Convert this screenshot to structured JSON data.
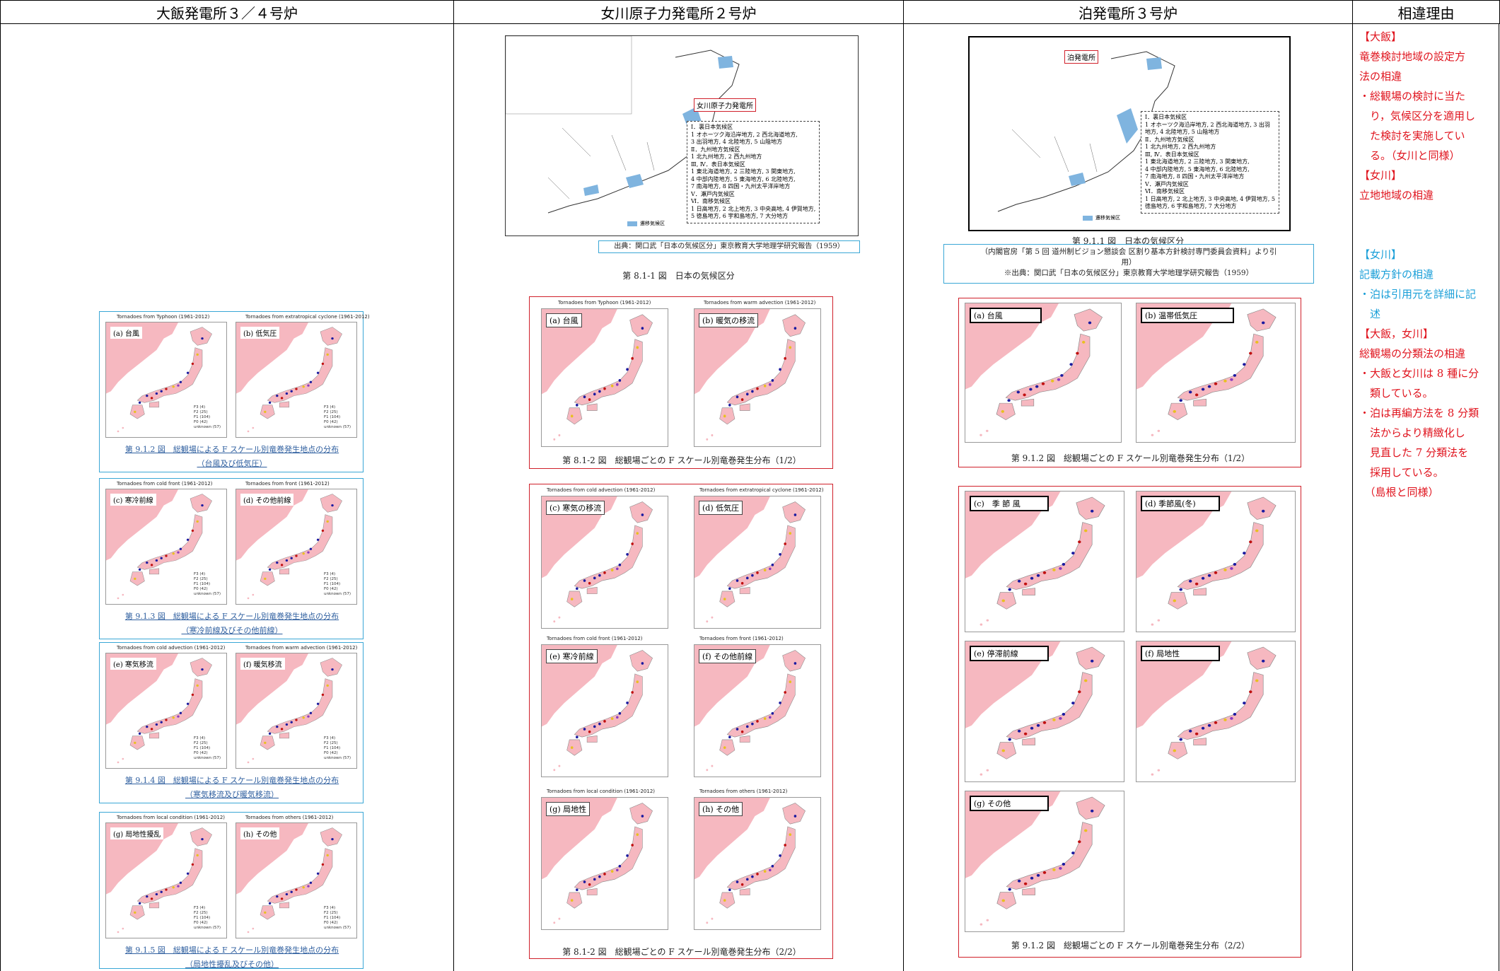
{
  "headers": {
    "col1": "大飯発電所３／４号炉",
    "col2": "女川原子力発電所２号炉",
    "col3": "泊発電所３号炉",
    "col4": "相違理由"
  },
  "col1": {
    "figures": [
      {
        "title_left": "Tornadoes from Typhoon (1961-2012)",
        "title_right": "Tornadoes from extratropical cyclone (1961-2012)",
        "label_left": "(a) 台風",
        "label_right": "(b) 低気圧",
        "caption": "第 9.1.2 図　総観場による F スケール別竜巻発生地点の分布",
        "sub": "（台風及び低気圧）"
      },
      {
        "title_left": "Tornadoes from cold front (1961-2012)",
        "title_right": "Tornadoes from front (1961-2012)",
        "label_left": "(c) 寒冷前線",
        "label_right": "(d) その他前線",
        "caption": "第 9.1.3 図　総観場による F スケール別竜巻発生地点の分布",
        "sub": "（寒冷前線及びその他前線）"
      },
      {
        "title_left": "Tornadoes from cold advection (1961-2012)",
        "title_right": "Tornadoes from warm advection (1961-2012)",
        "label_left": "(e) 寒気移流",
        "label_right": "(f) 暖気移流",
        "caption": "第 9.1.4 図　総観場による F スケール別竜巻発生地点の分布",
        "sub": "（寒気移流及び暖気移流）"
      },
      {
        "title_left": "Tornadoes from local condition (1961-2012)",
        "title_right": "Tornadoes from others (1961-2012)",
        "label_left": "(g) 局地性擾乱",
        "label_right": "(h) その他",
        "caption": "第 9.1.5 図　総観場による F スケール別竜巻発生地点の分布",
        "sub": "（局地性擾乱及びその他）"
      }
    ],
    "legend": [
      "F3 (4)",
      "F2 (25)",
      "F1 (104)",
      "F0 (42)",
      "unknown (57)"
    ]
  },
  "col2": {
    "plant_label": "女川原子力発電所",
    "zones": [
      "Ⅰ．裏日本気候区",
      "1 オホーツク海沿岸地方, 2 西北海道地方,",
      "3 出羽地方, 4 北陸地方, 5 山陰地方",
      "Ⅱ．九州地方気候区",
      "1 北九州地方, 2 西九州地方",
      "Ⅲ, Ⅳ．表日本気候区",
      "1 東北海道地方, 2 三陸地方, 3 関東地方,",
      "4 中部内陸地方, 5 東海地方, 6 北陸地方,",
      "7 南海地方, 8 四国・九州太平洋岸地方",
      "Ⅴ．瀬戸内気候区",
      "Ⅵ．南移気候区",
      "1 日高地方, 2 北上地方, 3 中央高地, 4 伊賀地方,",
      "5 徳島地方, 6 宇和島地方, 7 大分地方"
    ],
    "zone_legend": "遷移気候区",
    "source": "出典：関口武「日本の気候区分」東京教育大学地理学研究報告（1959）",
    "map_caption": "第 8.1-1 図　日本の気候区分",
    "fig1": {
      "title_left": "Tornadoes from Typhoon (1961-2012)",
      "title_right": "Tornadoes from warm advection (1961-2012)",
      "label_left": "(a) 台風",
      "label_right": "(b) 暖気の移流",
      "caption": "第 8.1-2 図　総観場ごとの F スケール別竜巻発生分布（1/2）"
    },
    "fig2": {
      "panels": [
        {
          "title": "Tornadoes from cold advection (1961-2012)",
          "label": "(c) 寒気の移流"
        },
        {
          "title": "Tornadoes from extratropical cyclone (1961-2012)",
          "label": "(d) 低気圧"
        },
        {
          "title": "Tornadoes from cold front (1961-2012)",
          "label": "(e) 寒冷前線"
        },
        {
          "title": "Tornadoes from front (1961-2012)",
          "label": "(f) その他前線"
        },
        {
          "title": "Tornadoes from local condition (1961-2012)",
          "label": "(g) 局地性"
        },
        {
          "title": "Tornadoes from others (1961-2012)",
          "label": "(h) その他"
        }
      ],
      "caption": "第 8.1-2 図　総観場ごとの F スケール別竜巻発生分布（2/2）"
    }
  },
  "col3": {
    "plant_label": "泊発電所",
    "zones": [
      "Ⅰ．裏日本気候区",
      "1 オホーツク海沿岸地方, 2 西北海道地方, 3 出羽",
      "地方, 4 北陸地方, 5 山陰地方",
      "Ⅱ．九州地方気候区",
      "1 北九州地方, 2 西九州地方",
      "Ⅲ, Ⅳ．表日本気候区",
      "1 東北海道地方, 2 三陸地方, 3 関東地方,",
      "4 中部内陸地方, 5 東海地方, 6 北陸地方,",
      "7 南海地方, 8 四国・九州太平洋岸地方",
      "Ⅴ．瀬戸内気候区",
      "Ⅵ．南移気候区",
      "1 日高地方, 2 北上地方, 3 中央高地, 4 伊賀地方, 5",
      "徳島地方, 6 宇和島地方, 7 大分地方"
    ],
    "zone_legend": "遷移気候区",
    "map_caption": "第 9.1.1 図　日本の気候区分",
    "source_line1": "（内閣官房「第 5 回 道州制ビジョン懇談会 区割り基本方針検討専門委員会資料」より引",
    "source_line2": "用）",
    "source_line3": "※出典：関口武「日本の気候区分」東京教育大学地理学研究報告（1959）",
    "fig1": {
      "label_left": "(a) 台風",
      "label_right": "(b) 温帯低気圧",
      "caption": "第 9.1.2 図　総観場ごとの F スケール別竜巻発生分布（1/2）"
    },
    "fig2": {
      "panels": [
        {
          "label": "(c)　季 節 風"
        },
        {
          "label": "(d) 季節風(冬)"
        },
        {
          "label": "(e) 停滞前線"
        },
        {
          "label": "(f) 局地性"
        },
        {
          "label": "(g) その他"
        }
      ],
      "caption": "第 9.1.2 図　総観場ごとの F スケール別竜巻発生分布（2/2）"
    }
  },
  "col4": {
    "notes": [
      {
        "text": "【大飯】",
        "color": "red"
      },
      {
        "text": "竜巻検討地域の設定方",
        "color": "red"
      },
      {
        "text": "法の相違",
        "color": "red"
      },
      {
        "text": "・総観場の検討に当た",
        "color": "red"
      },
      {
        "text": "　り，気候区分を適用し",
        "color": "red"
      },
      {
        "text": "　た検討を実施してい",
        "color": "red"
      },
      {
        "text": "　る。（女川と同様）",
        "color": "red"
      },
      {
        "text": "【女川】",
        "color": "red"
      },
      {
        "text": "立地地域の相違",
        "color": "red"
      },
      {
        "text": "",
        "color": "red"
      },
      {
        "text": "",
        "color": "red"
      },
      {
        "text": "【女川】",
        "color": "cyan"
      },
      {
        "text": "記載方針の相違",
        "color": "cyan"
      },
      {
        "text": "・泊は引用元を詳細に記",
        "color": "cyan"
      },
      {
        "text": "　述",
        "color": "cyan"
      },
      {
        "text": "【大飯，女川】",
        "color": "red"
      },
      {
        "text": "総観場の分類法の相違",
        "color": "red"
      },
      {
        "text": "・大飯と女川は 8 種に分",
        "color": "red"
      },
      {
        "text": "　類している。",
        "color": "red"
      },
      {
        "text": "・泊は再編方法を 8 分類",
        "color": "red"
      },
      {
        "text": "　法からより精緻化し",
        "color": "red"
      },
      {
        "text": "　見直した 7 分類法を",
        "color": "red"
      },
      {
        "text": "　採用している。",
        "color": "red"
      },
      {
        "text": "　（島根と同様）",
        "color": "red"
      }
    ]
  },
  "colors": {
    "red": "#e0141e",
    "cyan": "#1a9fd8",
    "land": "#f6b8c0",
    "frame_red": "#d0202a",
    "frame_cyan": "#3aa7d6"
  }
}
